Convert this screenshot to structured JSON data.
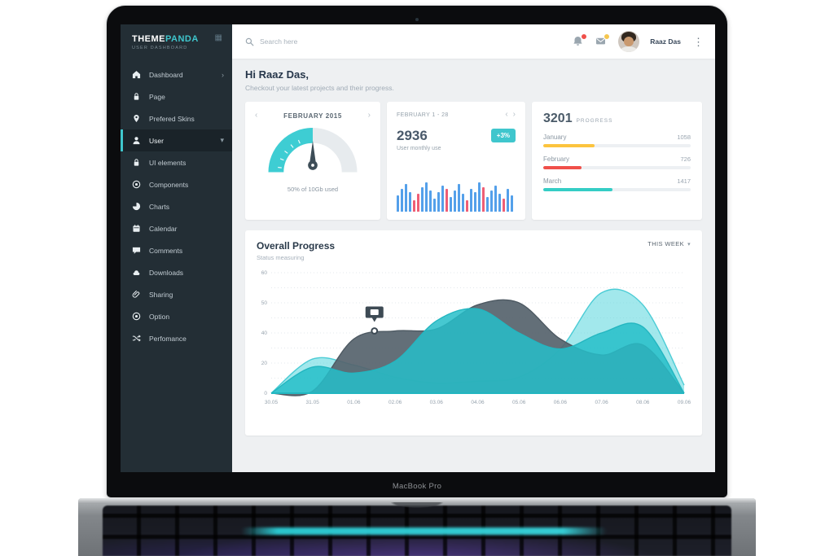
{
  "device": {
    "model_label": "MacBook Pro"
  },
  "colors": {
    "accent_teal": "#3fc6cd",
    "sidebar_bg": "#232e35",
    "danger_red": "#f0504a",
    "warning_yellow": "#fcc43e",
    "series_gray": "#55626b",
    "bar_blue": "#54a0ea",
    "bar_red": "#ef5e75"
  },
  "sidebar": {
    "logo_primary": "THEME",
    "logo_secondary": "PANDA",
    "logo_subtitle": "USER DASHBOARD",
    "menu_toggle_icon": "grid-menu-icon",
    "items": [
      {
        "label": "Dashboard",
        "icon": "home-icon",
        "chevron": "right",
        "active": false
      },
      {
        "label": "Page",
        "icon": "lock-icon",
        "chevron": "",
        "active": false
      },
      {
        "label": "Prefered Skins",
        "icon": "pin-icon",
        "chevron": "",
        "active": false
      },
      {
        "label": "User",
        "icon": "user-icon",
        "chevron": "down",
        "active": true
      },
      {
        "label": "UI elements",
        "icon": "lock-icon",
        "chevron": "",
        "active": false
      },
      {
        "label": "Components",
        "icon": "target-icon",
        "chevron": "",
        "active": false
      },
      {
        "label": "Charts",
        "icon": "pie-icon",
        "chevron": "",
        "active": false
      },
      {
        "label": "Calendar",
        "icon": "calendar-icon",
        "chevron": "",
        "active": false
      },
      {
        "label": "Comments",
        "icon": "comment-icon",
        "chevron": "",
        "active": false
      },
      {
        "label": "Downloads",
        "icon": "cloud-icon",
        "chevron": "",
        "active": false
      },
      {
        "label": "Sharing",
        "icon": "paperclip-icon",
        "chevron": "",
        "active": false
      },
      {
        "label": "Option",
        "icon": "target-icon",
        "chevron": "",
        "active": false
      },
      {
        "label": "Perfomance",
        "icon": "shuffle-icon",
        "chevron": "",
        "active": false
      }
    ]
  },
  "topbar": {
    "search_placeholder": "Search here",
    "search_icon": "search-icon",
    "notification_icons": [
      "bell-icon",
      "mail-icon"
    ],
    "user_name": "Raaz Das",
    "overflow_icon": "kebab-menu-icon"
  },
  "greeting": {
    "title": "Hi Raaz Das,",
    "subtitle": "Checkout your latest projects and their progress."
  },
  "cards": {
    "storage": {
      "period": "FEBRUARY 2015",
      "usage_caption": "50% of 10Gb used",
      "gauge_percent": 50
    },
    "monthly": {
      "period": "FEBRUARY 1 - 28",
      "value": "2936",
      "caption": "User monthly use",
      "badge": "+3%"
    },
    "progress": {
      "value": "3201",
      "label": "PROGRESS",
      "rows": [
        {
          "month": "January",
          "value": "1058",
          "percent": 35,
          "color": "#fcc43e"
        },
        {
          "month": "February",
          "value": "726",
          "percent": 26,
          "color": "#f0504a"
        },
        {
          "month": "March",
          "value": "1417",
          "percent": 47,
          "color": "#35cdc5"
        }
      ]
    }
  },
  "overall": {
    "title": "Overall Progress",
    "subtitle": "Status measuring",
    "range_label": "THIS WEEK"
  },
  "chart_data": [
    {
      "id": "overall-progress-area",
      "type": "area",
      "title": "Overall Progress",
      "x": [
        "30.05",
        "31.05",
        "01.06",
        "02.06",
        "03.06",
        "04.06",
        "05.06",
        "06.06",
        "07.06",
        "08.06",
        "09.06"
      ],
      "ylim": [
        0,
        60
      ],
      "grid": "dotted-horizontal",
      "y_tick_lines": [
        {
          "line": 0,
          "label": "60"
        },
        {
          "line": 2,
          "label": "50"
        },
        {
          "line": 4,
          "label": "40"
        },
        {
          "line": 6,
          "label": "20"
        },
        {
          "line": 8,
          "label": "0"
        }
      ],
      "series": [
        {
          "name": "back-light-teal",
          "fill": "rgba(85,214,221,0.55)",
          "stroke": "rgba(61,200,209,0.9)",
          "values": [
            0,
            17,
            14,
            8,
            5,
            6,
            8,
            22,
            50,
            44,
            4
          ]
        },
        {
          "name": "dark-gray",
          "fill": "rgba(86,99,108,0.92)",
          "stroke": "#4e5a63",
          "values": [
            0,
            1,
            27,
            31,
            32,
            44,
            45,
            27,
            19,
            24,
            0
          ]
        },
        {
          "name": "front-teal",
          "fill": "rgba(38,190,201,0.85)",
          "stroke": "#23b6c0",
          "values": [
            0,
            13,
            10,
            16,
            36,
            42,
            30,
            22,
            30,
            33,
            0
          ]
        }
      ],
      "marker": {
        "series": "dark-gray",
        "x_index": 2.5,
        "value": 31
      },
      "legend": "none"
    },
    {
      "id": "monthly-use-bars",
      "type": "bar",
      "title": "User monthly use",
      "values": [
        20,
        28,
        34,
        24,
        14,
        22,
        30,
        36,
        26,
        16,
        24,
        32,
        28,
        18,
        26,
        34,
        22,
        14,
        28,
        24,
        36,
        30,
        18,
        26,
        32,
        22,
        16,
        28,
        20
      ],
      "highlight_indexes": [
        4,
        5,
        12,
        17,
        21,
        26
      ],
      "colors": {
        "default": "#54a0ea",
        "highlight": "#ef5e75"
      },
      "ylim": [
        0,
        38
      ]
    },
    {
      "id": "storage-gauge",
      "type": "gauge",
      "percent": 50,
      "label": "50% of 10Gb used",
      "colors": {
        "filled": "#3ecdd3",
        "empty": "#e7ebee",
        "needle": "#3d4d57"
      }
    },
    {
      "id": "monthly-progress-bars",
      "type": "bar",
      "title": "3201 PROGRESS",
      "categories": [
        "January",
        "February",
        "March"
      ],
      "values": [
        1058,
        726,
        1417
      ],
      "colors": [
        "#fcc43e",
        "#f0504a",
        "#35cdc5"
      ]
    }
  ]
}
